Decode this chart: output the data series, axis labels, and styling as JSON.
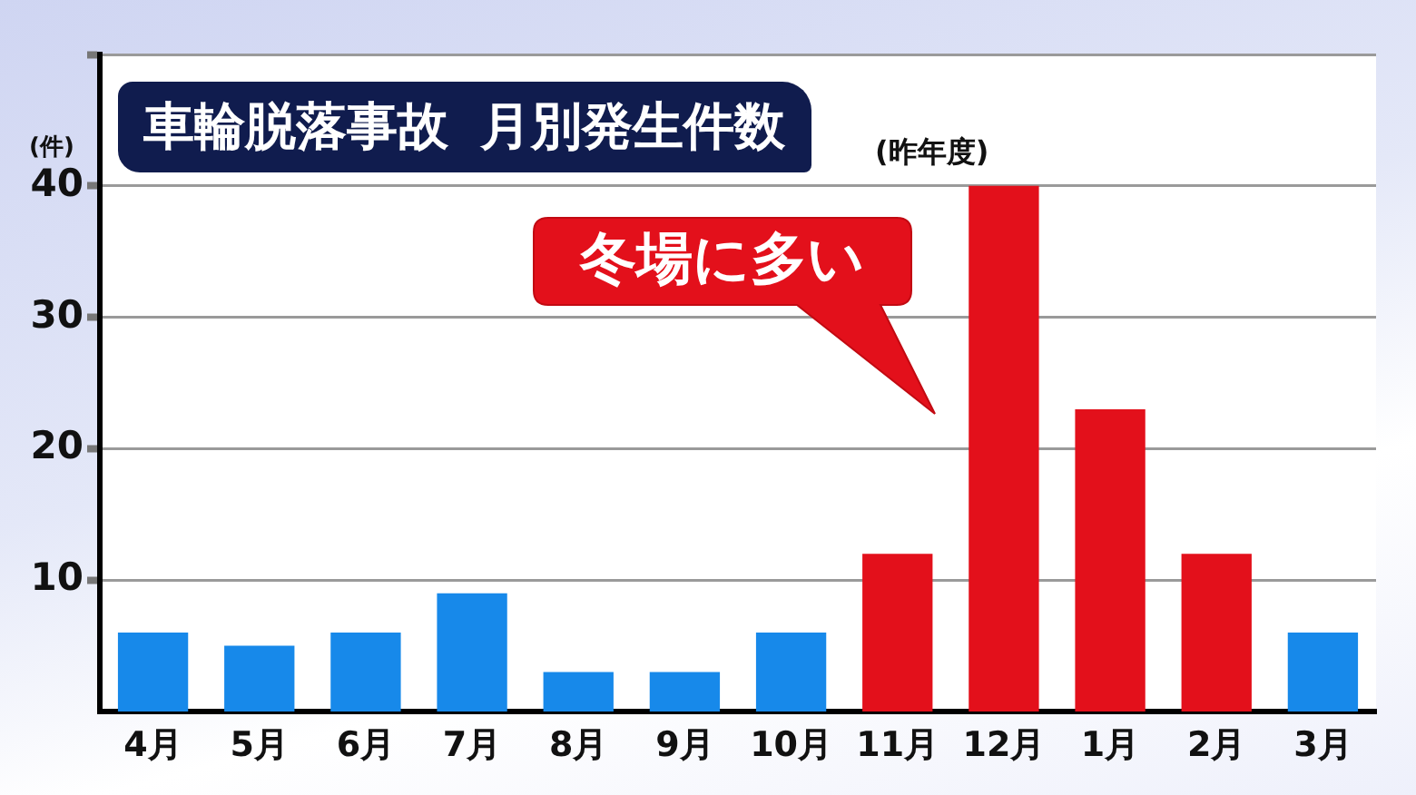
{
  "chart_data": {
    "type": "bar",
    "title": "車輪脱落事故 月別発生件数",
    "subtitle": "(昨年度)",
    "ylabel": "(件)",
    "categories": [
      "4月",
      "5月",
      "6月",
      "7月",
      "8月",
      "9月",
      "10月",
      "11月",
      "12月",
      "1月",
      "2月",
      "3月"
    ],
    "values": [
      6,
      5,
      6,
      9,
      3,
      3,
      6,
      12,
      40,
      23,
      12,
      6
    ],
    "colors": [
      "#1789ea",
      "#1789ea",
      "#1789ea",
      "#1789ea",
      "#1789ea",
      "#1789ea",
      "#1789ea",
      "#e3101b",
      "#e3101b",
      "#e3101b",
      "#e3101b",
      "#1789ea"
    ],
    "ylim": [
      0,
      50
    ],
    "yticks": [
      10,
      20,
      30,
      40,
      {
        "value": 50,
        "label": null
      }
    ],
    "grid": "y",
    "annotations": [
      "冬場に多い"
    ]
  }
}
